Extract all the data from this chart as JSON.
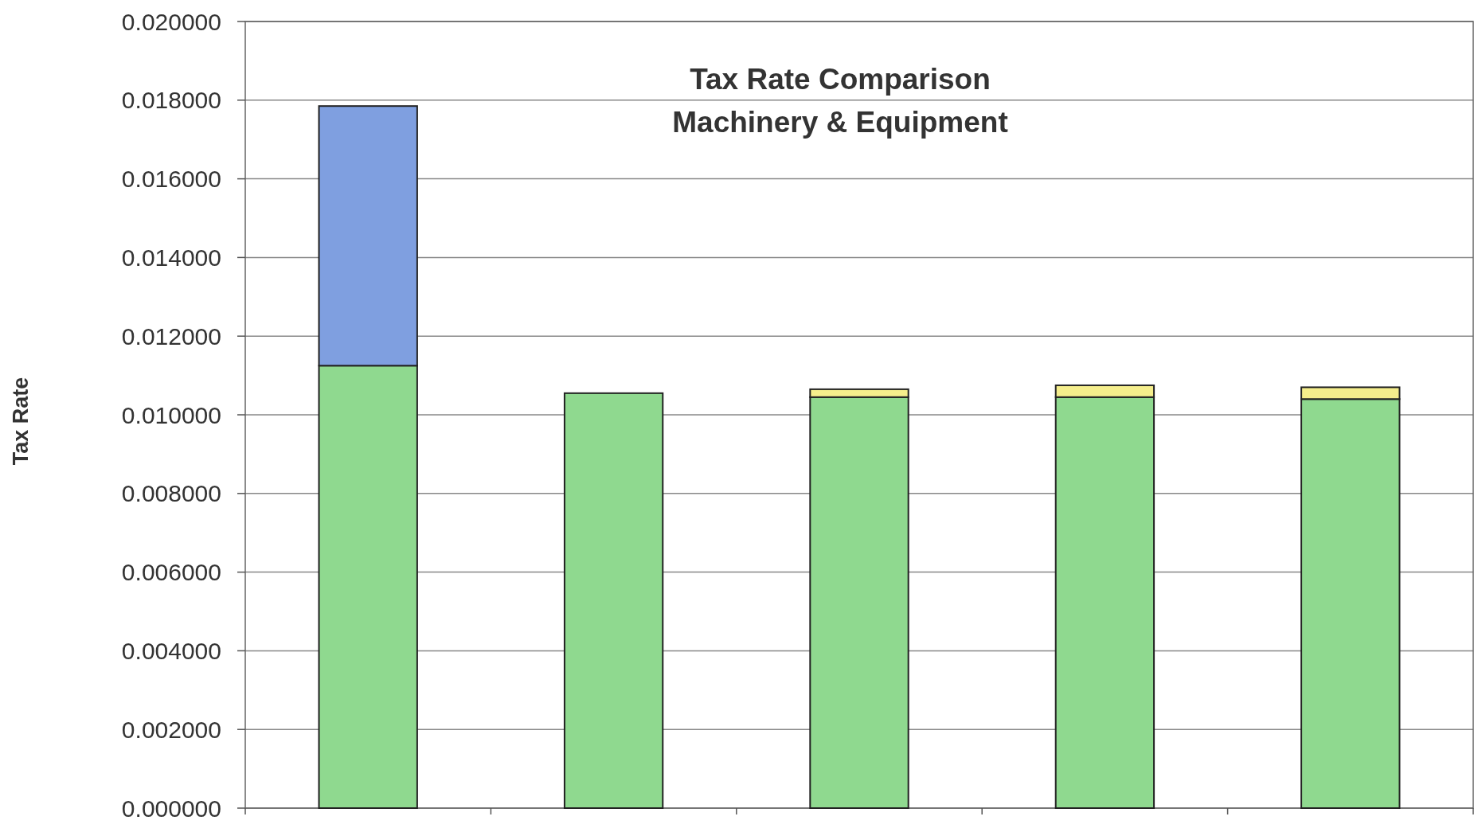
{
  "chart_data": {
    "type": "bar",
    "title": "Tax Rate Comparison",
    "subtitle": "Machinery & Equipment",
    "ylabel": "Tax Rate",
    "categories": [
      null,
      null,
      null,
      null,
      null
    ],
    "stacked": true,
    "series": [
      {
        "color": "#8fd98f",
        "values": [
          0.01125,
          0.01055,
          0.01045,
          0.01045,
          0.0104
        ]
      },
      {
        "color": "#7f9fe0",
        "values": [
          0.0066,
          0,
          0,
          0,
          0
        ]
      },
      {
        "color": "#f5ee8c",
        "values": [
          0,
          0,
          0.0002,
          0.0003,
          0.0003
        ]
      }
    ],
    "ylim": [
      0,
      0.02
    ],
    "yticks": [
      {
        "value": 0,
        "label": "0.000000"
      },
      {
        "value": 0.002,
        "label": "0.002000"
      },
      {
        "value": 0.004,
        "label": "0.004000"
      },
      {
        "value": 0.006,
        "label": "0.006000"
      },
      {
        "value": 0.008,
        "label": "0.008000"
      },
      {
        "value": 0.01,
        "label": "0.010000"
      },
      {
        "value": 0.012,
        "label": "0.012000"
      },
      {
        "value": 0.014,
        "label": "0.014000"
      },
      {
        "value": 0.016,
        "label": "0.016000"
      },
      {
        "value": 0.018,
        "label": "0.018000"
      },
      {
        "value": 0.02,
        "label": "0.020000"
      }
    ],
    "grid": "y"
  }
}
